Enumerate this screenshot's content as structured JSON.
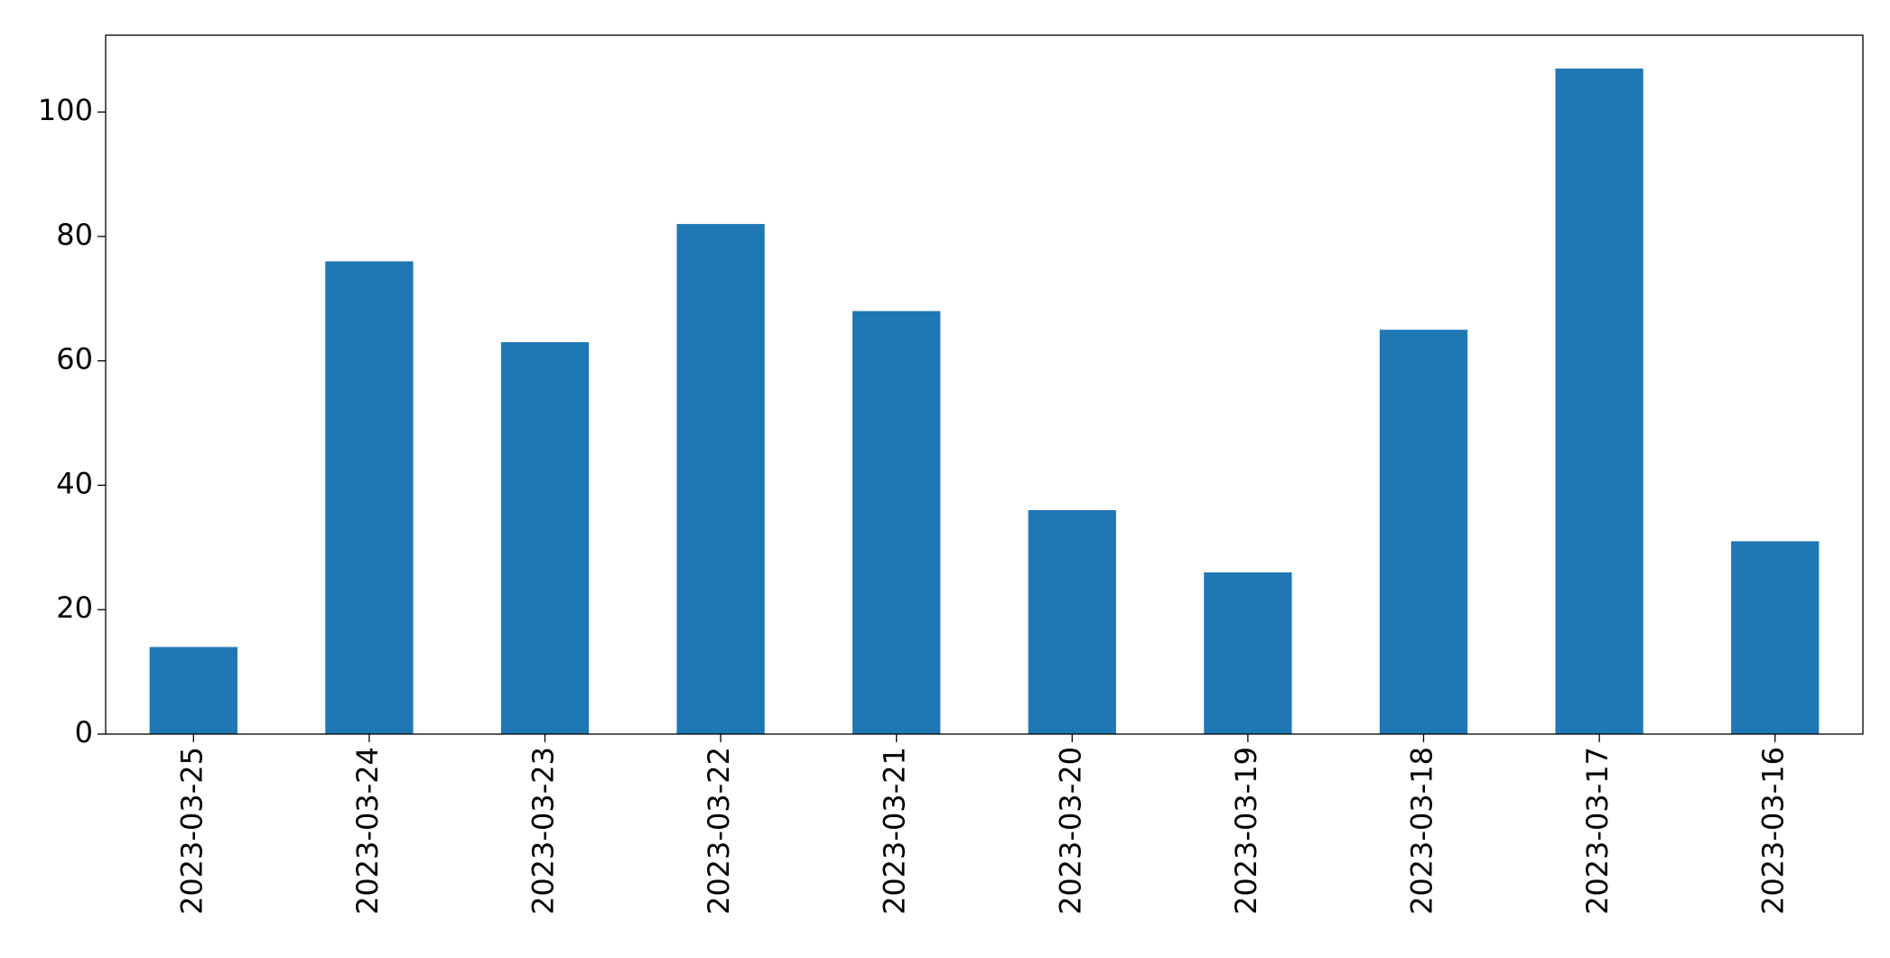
{
  "chart_data": {
    "type": "bar",
    "categories": [
      "2023-03-25",
      "2023-03-24",
      "2023-03-23",
      "2023-03-22",
      "2023-03-21",
      "2023-03-20",
      "2023-03-19",
      "2023-03-18",
      "2023-03-17",
      "2023-03-16"
    ],
    "values": [
      14,
      76,
      63,
      82,
      68,
      36,
      26,
      65,
      107,
      31
    ],
    "color": "#1f77b4",
    "ylim": [
      0,
      112.35
    ],
    "yticks": [
      0,
      20,
      40,
      60,
      80,
      100
    ],
    "grid": false
  }
}
